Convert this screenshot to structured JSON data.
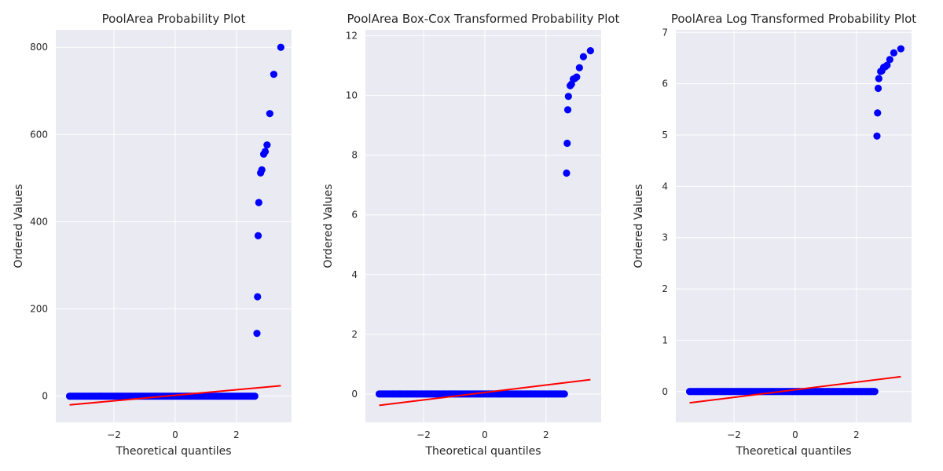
{
  "colors": {
    "background": "#eaeaf2",
    "grid": "#ffffff",
    "points": "#0000ff",
    "fit_line": "#ff0000",
    "text": "#262626"
  },
  "chart_data": [
    {
      "type": "scatter",
      "title": "PoolArea Probability Plot",
      "xlabel": "Theoretical quantiles",
      "ylabel": "Ordered Values",
      "xlim": [
        -3.9,
        3.8
      ],
      "ylim": [
        -60,
        840
      ],
      "xticks": [
        -2,
        0,
        2
      ],
      "xtick_labels": [
        "−2",
        "0",
        "2"
      ],
      "yticks": [
        0,
        200,
        400,
        600,
        800
      ],
      "ytick_labels": [
        "0",
        "200",
        "400",
        "600",
        "800"
      ],
      "grid": true,
      "bulk": {
        "x_from": -3.45,
        "x_to": 2.6,
        "y": 0
      },
      "points": [
        {
          "x": 2.67,
          "y": 144
        },
        {
          "x": 2.69,
          "y": 228
        },
        {
          "x": 2.71,
          "y": 368
        },
        {
          "x": 2.73,
          "y": 444
        },
        {
          "x": 2.79,
          "y": 512
        },
        {
          "x": 2.83,
          "y": 519
        },
        {
          "x": 2.89,
          "y": 555
        },
        {
          "x": 2.94,
          "y": 561
        },
        {
          "x": 3.0,
          "y": 576
        },
        {
          "x": 3.09,
          "y": 648
        },
        {
          "x": 3.22,
          "y": 738
        },
        {
          "x": 3.45,
          "y": 800
        }
      ],
      "fit_line": {
        "x": [
          -3.45,
          3.45
        ],
        "y": [
          -20,
          24
        ]
      }
    },
    {
      "type": "scatter",
      "title": "PoolArea Box-Cox Transformed Probability Plot",
      "xlabel": "Theoretical quantiles",
      "ylabel": "Ordered Values",
      "xlim": [
        -3.9,
        3.8
      ],
      "ylim": [
        -0.95,
        12.2
      ],
      "xticks": [
        -2,
        0,
        2
      ],
      "xtick_labels": [
        "−2",
        "0",
        "2"
      ],
      "yticks": [
        0,
        2,
        4,
        6,
        8,
        10,
        12
      ],
      "ytick_labels": [
        "0",
        "2",
        "4",
        "6",
        "8",
        "10",
        "12"
      ],
      "grid": true,
      "bulk": {
        "x_from": -3.45,
        "x_to": 2.6,
        "y": 0
      },
      "points": [
        {
          "x": 2.67,
          "y": 7.4
        },
        {
          "x": 2.69,
          "y": 8.4
        },
        {
          "x": 2.71,
          "y": 9.52
        },
        {
          "x": 2.73,
          "y": 9.97
        },
        {
          "x": 2.79,
          "y": 10.33
        },
        {
          "x": 2.83,
          "y": 10.38
        },
        {
          "x": 2.89,
          "y": 10.55
        },
        {
          "x": 2.94,
          "y": 10.57
        },
        {
          "x": 3.0,
          "y": 10.62
        },
        {
          "x": 3.09,
          "y": 10.93
        },
        {
          "x": 3.22,
          "y": 11.3
        },
        {
          "x": 3.45,
          "y": 11.5
        }
      ],
      "fit_line": {
        "x": [
          -3.45,
          3.45
        ],
        "y": [
          -0.38,
          0.48
        ]
      }
    },
    {
      "type": "scatter",
      "title": "PoolArea Log Transformed Probability Plot",
      "xlabel": "Theoretical quantiles",
      "ylabel": "Ordered Values",
      "xlim": [
        -3.9,
        3.8
      ],
      "ylim": [
        -0.6,
        7.05
      ],
      "xticks": [
        -2,
        0,
        2
      ],
      "xtick_labels": [
        "−2",
        "0",
        "2"
      ],
      "yticks": [
        0,
        1,
        2,
        3,
        4,
        5,
        6,
        7
      ],
      "ytick_labels": [
        "0",
        "1",
        "2",
        "3",
        "4",
        "5",
        "6",
        "7"
      ],
      "grid": true,
      "bulk": {
        "x_from": -3.45,
        "x_to": 2.6,
        "y": 0
      },
      "points": [
        {
          "x": 2.67,
          "y": 4.98
        },
        {
          "x": 2.69,
          "y": 5.43
        },
        {
          "x": 2.71,
          "y": 5.91
        },
        {
          "x": 2.73,
          "y": 6.1
        },
        {
          "x": 2.79,
          "y": 6.24
        },
        {
          "x": 2.83,
          "y": 6.25
        },
        {
          "x": 2.89,
          "y": 6.32
        },
        {
          "x": 2.94,
          "y": 6.33
        },
        {
          "x": 3.0,
          "y": 6.36
        },
        {
          "x": 3.09,
          "y": 6.47
        },
        {
          "x": 3.22,
          "y": 6.6
        },
        {
          "x": 3.45,
          "y": 6.68
        }
      ],
      "fit_line": {
        "x": [
          -3.45,
          3.45
        ],
        "y": [
          -0.22,
          0.29
        ]
      }
    }
  ]
}
